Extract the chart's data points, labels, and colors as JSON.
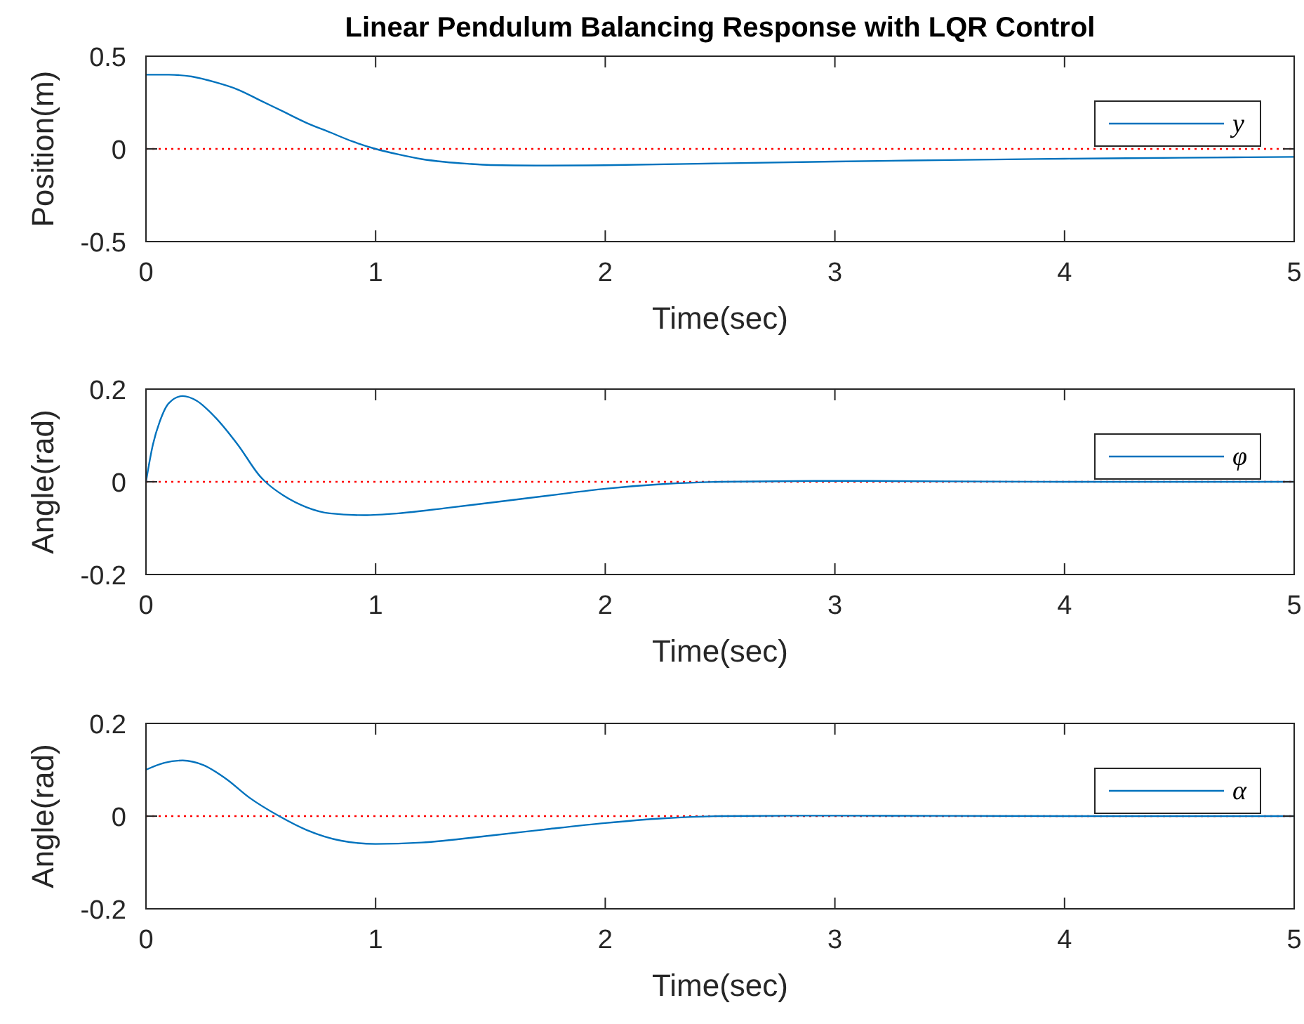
{
  "chart_data": [
    {
      "type": "line",
      "title": "Linear Pendulum Balancing Response with LQR Control",
      "xlabel": "Time(sec)",
      "ylabel": "Position(m)",
      "xlim": [
        0,
        5
      ],
      "xticks": [
        0,
        1,
        2,
        3,
        4,
        5
      ],
      "ylim": [
        -0.5,
        0.5
      ],
      "yticks": [
        -0.5,
        0,
        0.5
      ],
      "legend": "right",
      "grid": false,
      "ref_lines": [
        {
          "axis": "y",
          "value": 0,
          "color": "#ff0000",
          "line_style": "dotted"
        }
      ],
      "series": [
        {
          "name": "y",
          "color": "#0072bd",
          "x": [
            0,
            0.1,
            0.2,
            0.3,
            0.4,
            0.5,
            0.6,
            0.7,
            0.8,
            0.9,
            1.0,
            1.1,
            1.2,
            1.3,
            1.4,
            1.5,
            1.75,
            2.0,
            2.5,
            3.0,
            3.5,
            4.0,
            4.5,
            5.0
          ],
          "values": [
            0.4,
            0.4,
            0.39,
            0.36,
            0.32,
            0.26,
            0.2,
            0.14,
            0.09,
            0.04,
            0.0,
            -0.03,
            -0.055,
            -0.07,
            -0.08,
            -0.087,
            -0.09,
            -0.088,
            -0.078,
            -0.068,
            -0.06,
            -0.053,
            -0.048,
            -0.043
          ]
        }
      ]
    },
    {
      "type": "line",
      "xlabel": "Time(sec)",
      "ylabel": "Angle(rad)",
      "xlim": [
        0,
        5
      ],
      "xticks": [
        0,
        1,
        2,
        3,
        4,
        5
      ],
      "ylim": [
        -0.2,
        0.2
      ],
      "yticks": [
        -0.2,
        0,
        0.2
      ],
      "legend": "right",
      "grid": false,
      "ref_lines": [
        {
          "axis": "y",
          "value": 0,
          "color": "#ff0000",
          "line_style": "dotted"
        }
      ],
      "series": [
        {
          "name": "φ",
          "color": "#0072bd",
          "x": [
            0,
            0.03,
            0.06,
            0.1,
            0.16,
            0.22,
            0.3,
            0.4,
            0.5,
            0.52,
            0.6,
            0.7,
            0.8,
            0.95,
            1.1,
            1.3,
            1.5,
            1.75,
            2.0,
            2.25,
            2.5,
            3.0,
            3.5,
            4.0,
            5.0
          ],
          "values": [
            0,
            0.08,
            0.13,
            0.17,
            0.185,
            0.175,
            0.14,
            0.08,
            0.01,
            0,
            -0.03,
            -0.055,
            -0.068,
            -0.072,
            -0.068,
            -0.057,
            -0.045,
            -0.03,
            -0.015,
            -0.005,
            0,
            0.002,
            0.001,
            0,
            0
          ]
        }
      ]
    },
    {
      "type": "line",
      "xlabel": "Time(sec)",
      "ylabel": "Angle(rad)",
      "xlim": [
        0,
        5
      ],
      "xticks": [
        0,
        1,
        2,
        3,
        4,
        5
      ],
      "ylim": [
        -0.2,
        0.2
      ],
      "yticks": [
        -0.2,
        0,
        0.2
      ],
      "legend": "right",
      "grid": false,
      "ref_lines": [
        {
          "axis": "y",
          "value": 0,
          "color": "#ff0000",
          "line_style": "dotted"
        }
      ],
      "series": [
        {
          "name": "α",
          "color": "#0072bd",
          "x": [
            0,
            0.08,
            0.16,
            0.25,
            0.35,
            0.45,
            0.58,
            0.7,
            0.85,
            1.0,
            1.2,
            1.5,
            1.75,
            2.0,
            2.25,
            2.5,
            3.0,
            4.0,
            5.0
          ],
          "values": [
            0.1,
            0.115,
            0.12,
            0.11,
            0.08,
            0.04,
            0,
            -0.03,
            -0.053,
            -0.06,
            -0.057,
            -0.042,
            -0.028,
            -0.015,
            -0.005,
            0,
            0.001,
            0,
            0
          ]
        }
      ]
    }
  ]
}
